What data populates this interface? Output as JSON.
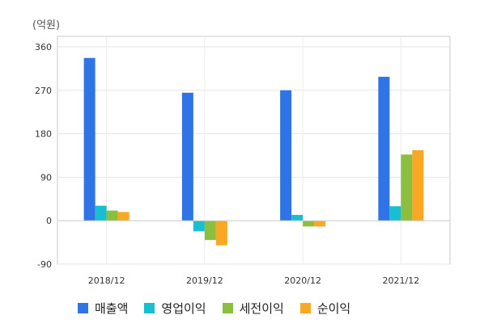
{
  "chart_data": {
    "type": "bar",
    "unit_label": "(억원)",
    "categories": [
      "2018/12",
      "2019/12",
      "2020/12",
      "2021/12"
    ],
    "series": [
      {
        "name": "매출액",
        "color": "#2f74e6",
        "values": [
          337,
          265,
          270,
          298
        ]
      },
      {
        "name": "영업이익",
        "color": "#19bfd1",
        "values": [
          31,
          -22,
          12,
          30
        ]
      },
      {
        "name": "세전이익",
        "color": "#8dbf3f",
        "values": [
          21,
          -40,
          -12,
          137
        ]
      },
      {
        "name": "순이익",
        "color": "#f8a825",
        "values": [
          18,
          -51,
          -12,
          146
        ]
      }
    ],
    "ylim": [
      -90,
      360
    ],
    "yticks": [
      -90,
      0,
      90,
      180,
      270,
      360
    ],
    "grid": true,
    "legend_position": "bottom"
  }
}
